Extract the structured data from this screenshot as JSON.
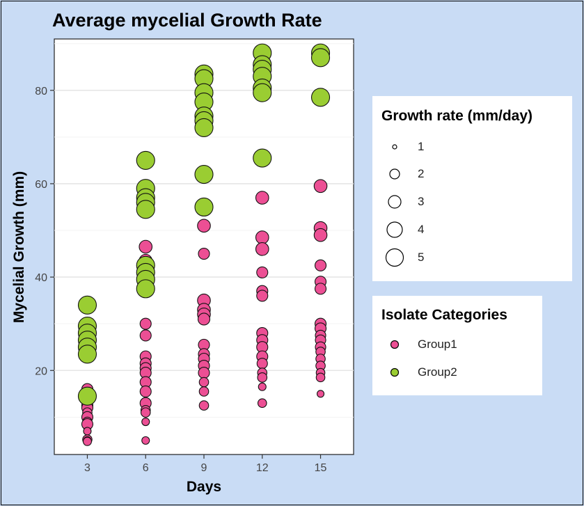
{
  "chart_data": {
    "type": "scatter",
    "title": "Average mycelial Growth Rate",
    "xlabel": "Days",
    "ylabel": "Mycelial Growth (mm)",
    "x_ticks": [
      3,
      6,
      9,
      12,
      15
    ],
    "y_ticks": [
      20,
      40,
      60,
      80
    ],
    "xlim": [
      1.3,
      16.7
    ],
    "ylim": [
      2,
      91
    ],
    "grid": "horizontal-major",
    "size_legend": {
      "title": "Growth rate (mm/day)",
      "values": [
        1,
        2,
        3,
        4,
        5
      ]
    },
    "color_legend": {
      "title": "Isolate Categories",
      "entries": [
        {
          "label": "Group1",
          "color": "#ec4f94"
        },
        {
          "label": "Group2",
          "color": "#9acd32"
        }
      ]
    },
    "series": [
      {
        "name": "Group1",
        "color": "#ec4f94",
        "points": [
          {
            "x": 3,
            "y": 16,
            "r": 2
          },
          {
            "x": 3,
            "y": 15,
            "r": 2
          },
          {
            "x": 3,
            "y": 13.5,
            "r": 2
          },
          {
            "x": 3,
            "y": 12.5,
            "r": 2
          },
          {
            "x": 3,
            "y": 12,
            "r": 2
          },
          {
            "x": 3,
            "y": 11,
            "r": 1.5
          },
          {
            "x": 3,
            "y": 10,
            "r": 2
          },
          {
            "x": 3,
            "y": 9,
            "r": 1.5
          },
          {
            "x": 3,
            "y": 8.5,
            "r": 2
          },
          {
            "x": 3,
            "y": 7,
            "r": 1
          },
          {
            "x": 3,
            "y": 5.2,
            "r": 1.5
          },
          {
            "x": 3,
            "y": 5,
            "r": 1
          },
          {
            "x": 3,
            "y": 4.8,
            "r": 1.2
          },
          {
            "x": 6,
            "y": 46.5,
            "r": 2.5
          },
          {
            "x": 6,
            "y": 43.5,
            "r": 2.5
          },
          {
            "x": 6,
            "y": 30,
            "r": 2
          },
          {
            "x": 6,
            "y": 27.5,
            "r": 2
          },
          {
            "x": 6,
            "y": 23,
            "r": 2
          },
          {
            "x": 6,
            "y": 21.5,
            "r": 2
          },
          {
            "x": 6,
            "y": 20.5,
            "r": 2
          },
          {
            "x": 6,
            "y": 19.5,
            "r": 2
          },
          {
            "x": 6,
            "y": 17.5,
            "r": 2
          },
          {
            "x": 6,
            "y": 15.5,
            "r": 2
          },
          {
            "x": 6,
            "y": 13,
            "r": 2
          },
          {
            "x": 6,
            "y": 11.5,
            "r": 1.5
          },
          {
            "x": 6,
            "y": 11,
            "r": 1.5
          },
          {
            "x": 6,
            "y": 9,
            "r": 1
          },
          {
            "x": 6,
            "y": 5,
            "r": 1
          },
          {
            "x": 9,
            "y": 51,
            "r": 2.5
          },
          {
            "x": 9,
            "y": 45,
            "r": 2
          },
          {
            "x": 9,
            "y": 35,
            "r": 2.5
          },
          {
            "x": 9,
            "y": 33,
            "r": 2.5
          },
          {
            "x": 9,
            "y": 32,
            "r": 2.5
          },
          {
            "x": 9,
            "y": 31,
            "r": 2.2
          },
          {
            "x": 9,
            "y": 25.5,
            "r": 2
          },
          {
            "x": 9,
            "y": 23.5,
            "r": 2
          },
          {
            "x": 9,
            "y": 22.5,
            "r": 2
          },
          {
            "x": 9,
            "y": 21,
            "r": 2
          },
          {
            "x": 9,
            "y": 19.5,
            "r": 2
          },
          {
            "x": 9,
            "y": 17.5,
            "r": 1.5
          },
          {
            "x": 9,
            "y": 15.5,
            "r": 1.5
          },
          {
            "x": 9,
            "y": 12.5,
            "r": 1.5
          },
          {
            "x": 12,
            "y": 57,
            "r": 2.5
          },
          {
            "x": 12,
            "y": 48.5,
            "r": 2.5
          },
          {
            "x": 12,
            "y": 46,
            "r": 2.5
          },
          {
            "x": 12,
            "y": 41,
            "r": 2
          },
          {
            "x": 12,
            "y": 37,
            "r": 2
          },
          {
            "x": 12,
            "y": 36,
            "r": 2
          },
          {
            "x": 12,
            "y": 28,
            "r": 2
          },
          {
            "x": 12,
            "y": 26.5,
            "r": 2
          },
          {
            "x": 12,
            "y": 25,
            "r": 2
          },
          {
            "x": 12,
            "y": 23,
            "r": 2
          },
          {
            "x": 12,
            "y": 21.5,
            "r": 1.8
          },
          {
            "x": 12,
            "y": 19.5,
            "r": 1.5
          },
          {
            "x": 12,
            "y": 18.5,
            "r": 1.5
          },
          {
            "x": 12,
            "y": 16.5,
            "r": 1
          },
          {
            "x": 12,
            "y": 13,
            "r": 1.3
          },
          {
            "x": 15,
            "y": 59.5,
            "r": 2.5
          },
          {
            "x": 15,
            "y": 50.5,
            "r": 2.5
          },
          {
            "x": 15,
            "y": 49,
            "r": 2.5
          },
          {
            "x": 15,
            "y": 42.5,
            "r": 2
          },
          {
            "x": 15,
            "y": 39,
            "r": 2
          },
          {
            "x": 15,
            "y": 37.5,
            "r": 2
          },
          {
            "x": 15,
            "y": 30,
            "r": 2
          },
          {
            "x": 15,
            "y": 29,
            "r": 2
          },
          {
            "x": 15,
            "y": 27.5,
            "r": 1.8
          },
          {
            "x": 15,
            "y": 26.5,
            "r": 1.8
          },
          {
            "x": 15,
            "y": 25,
            "r": 1.8
          },
          {
            "x": 15,
            "y": 24,
            "r": 1.5
          },
          {
            "x": 15,
            "y": 22.5,
            "r": 1.5
          },
          {
            "x": 15,
            "y": 21,
            "r": 1.5
          },
          {
            "x": 15,
            "y": 19.5,
            "r": 1.3
          },
          {
            "x": 15,
            "y": 18.5,
            "r": 1.3
          },
          {
            "x": 15,
            "y": 15,
            "r": 0.8
          }
        ]
      },
      {
        "name": "Group2",
        "color": "#9acd32",
        "points": [
          {
            "x": 3,
            "y": 34,
            "r": 4
          },
          {
            "x": 3,
            "y": 29.5,
            "r": 4
          },
          {
            "x": 3,
            "y": 28,
            "r": 4
          },
          {
            "x": 3,
            "y": 26.5,
            "r": 4
          },
          {
            "x": 3,
            "y": 25,
            "r": 4
          },
          {
            "x": 3,
            "y": 23.5,
            "r": 4
          },
          {
            "x": 3,
            "y": 14.5,
            "r": 4
          },
          {
            "x": 6,
            "y": 65,
            "r": 4
          },
          {
            "x": 6,
            "y": 59,
            "r": 4
          },
          {
            "x": 6,
            "y": 57,
            "r": 4
          },
          {
            "x": 6,
            "y": 56,
            "r": 4
          },
          {
            "x": 6,
            "y": 54.5,
            "r": 4
          },
          {
            "x": 6,
            "y": 42.5,
            "r": 4
          },
          {
            "x": 6,
            "y": 41,
            "r": 4
          },
          {
            "x": 6,
            "y": 39.5,
            "r": 4
          },
          {
            "x": 6,
            "y": 37.5,
            "r": 4
          },
          {
            "x": 9,
            "y": 83.5,
            "r": 4
          },
          {
            "x": 9,
            "y": 82.5,
            "r": 4
          },
          {
            "x": 9,
            "y": 79.5,
            "r": 4
          },
          {
            "x": 9,
            "y": 77.5,
            "r": 4
          },
          {
            "x": 9,
            "y": 74.5,
            "r": 4
          },
          {
            "x": 9,
            "y": 73.5,
            "r": 4
          },
          {
            "x": 9,
            "y": 72,
            "r": 4
          },
          {
            "x": 9,
            "y": 62,
            "r": 4
          },
          {
            "x": 9,
            "y": 55,
            "r": 4
          },
          {
            "x": 12,
            "y": 88,
            "r": 4
          },
          {
            "x": 12,
            "y": 85.5,
            "r": 4
          },
          {
            "x": 12,
            "y": 84.5,
            "r": 4
          },
          {
            "x": 12,
            "y": 83,
            "r": 4
          },
          {
            "x": 12,
            "y": 80.5,
            "r": 4
          },
          {
            "x": 12,
            "y": 79.5,
            "r": 4
          },
          {
            "x": 12,
            "y": 65.5,
            "r": 4
          },
          {
            "x": 15,
            "y": 88,
            "r": 4
          },
          {
            "x": 15,
            "y": 87,
            "r": 4
          },
          {
            "x": 15,
            "y": 78.5,
            "r": 4
          }
        ]
      }
    ]
  }
}
